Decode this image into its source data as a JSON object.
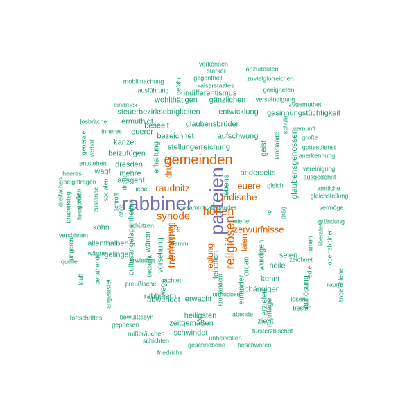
{
  "colors": {
    "green": "#1b9e77",
    "orange": "#d95f02",
    "purple": "#7570b3"
  },
  "words": [
    {
      "t": "rabbiner",
      "c": "purple",
      "r": false
    },
    {
      "t": "parteien",
      "c": "purple",
      "r": true
    },
    {
      "t": "gemeinden",
      "c": "orange",
      "r": false
    },
    {
      "t": "religiösen",
      "c": "orange",
      "r": true
    },
    {
      "t": "hohen",
      "c": "orange",
      "r": false
    },
    {
      "t": "trennung",
      "c": "orange",
      "r": true
    },
    {
      "t": "synode",
      "c": "orange",
      "r": false
    },
    {
      "t": "raudnitz",
      "c": "orange",
      "r": false
    },
    {
      "t": "jüdische",
      "c": "orange",
      "r": false
    },
    {
      "t": "euere",
      "c": "orange",
      "r": false
    },
    {
      "t": "zerwürfnisse",
      "c": "orange",
      "r": false
    },
    {
      "t": "druck",
      "c": "orange",
      "r": true
    },
    {
      "t": "laien",
      "c": "orange",
      "r": true
    },
    {
      "t": "belehrung",
      "c": "orange",
      "r": true
    },
    {
      "t": "reglung",
      "c": "orange",
      "r": true
    },
    {
      "t": "verkennen",
      "c": "green",
      "r": false
    },
    {
      "t": "stärker",
      "c": "green",
      "r": false
    },
    {
      "t": "anzudeuten",
      "c": "green",
      "r": false
    },
    {
      "t": "gegentheil",
      "c": "green",
      "r": false
    },
    {
      "t": "zuvielglorreichen",
      "c": "green",
      "r": false
    },
    {
      "t": "mobilmachung",
      "c": "green",
      "r": false
    },
    {
      "t": "kaiserstaates",
      "c": "green",
      "r": false
    },
    {
      "t": "gefahr",
      "c": "green",
      "r": true
    },
    {
      "t": "geeigneten",
      "c": "green",
      "r": false
    },
    {
      "t": "ausführung",
      "c": "green",
      "r": false
    },
    {
      "t": "indifferentismus",
      "c": "green",
      "r": false
    },
    {
      "t": "wohlthätigen",
      "c": "green",
      "r": false
    },
    {
      "t": "gänzlichen",
      "c": "green",
      "r": false
    },
    {
      "t": "verständigung",
      "c": "green",
      "r": false
    },
    {
      "t": "zugemuthet",
      "c": "green",
      "r": false
    },
    {
      "t": "eindruck",
      "c": "green",
      "r": false
    },
    {
      "t": "steuerbezirksobrigkeiten",
      "c": "green",
      "r": false
    },
    {
      "t": "entwicklung",
      "c": "green",
      "r": false
    },
    {
      "t": "gesinnungstüchtigkeit",
      "c": "green",
      "r": false
    },
    {
      "t": "losbräche",
      "c": "green",
      "r": false
    },
    {
      "t": "ermuthigt",
      "c": "green",
      "r": false
    },
    {
      "t": "beseelt",
      "c": "green",
      "r": false
    },
    {
      "t": "glaubensbrüder",
      "c": "green",
      "r": false
    },
    {
      "t": "schule",
      "c": "green",
      "r": true
    },
    {
      "t": "vernunft",
      "c": "green",
      "r": false
    },
    {
      "t": "inneres",
      "c": "green",
      "r": false
    },
    {
      "t": "euerer",
      "c": "green",
      "r": false
    },
    {
      "t": "bezeichnet",
      "c": "green",
      "r": false
    },
    {
      "t": "aufschwung",
      "c": "green",
      "r": false
    },
    {
      "t": "große",
      "c": "green",
      "r": false
    },
    {
      "t": "generale",
      "c": "green",
      "r": true
    },
    {
      "t": "verbot",
      "c": "green",
      "r": true
    },
    {
      "t": "kanzel",
      "c": "green",
      "r": false
    },
    {
      "t": "stellungerreichung",
      "c": "green",
      "r": false
    },
    {
      "t": "geist",
      "c": "green",
      "r": true
    },
    {
      "t": "kronlande",
      "c": "green",
      "r": true
    },
    {
      "t": "glaubensgenossen",
      "c": "green",
      "r": true
    },
    {
      "t": "gottesdienst",
      "c": "green",
      "r": false
    },
    {
      "t": "beizufügen",
      "c": "green",
      "r": false
    },
    {
      "t": "erhaltung",
      "c": "green",
      "r": true
    },
    {
      "t": "anerkennung",
      "c": "green",
      "r": false
    },
    {
      "t": "entstehen",
      "c": "green",
      "r": false
    },
    {
      "t": "dresden",
      "c": "green",
      "r": false
    },
    {
      "t": "mehre",
      "c": "green",
      "r": false
    },
    {
      "t": "anderseits",
      "c": "green",
      "r": false
    },
    {
      "t": "vereinigung",
      "c": "green",
      "r": false
    },
    {
      "t": "heeres",
      "c": "green",
      "r": false
    },
    {
      "t": "wagt",
      "c": "green",
      "r": false
    },
    {
      "t": "ausgedehnt",
      "c": "green",
      "r": false
    },
    {
      "t": "beigetragen",
      "c": "green",
      "r": false
    },
    {
      "t": "ausgeht",
      "c": "green",
      "r": false
    },
    {
      "t": "lebens",
      "c": "green",
      "r": true
    },
    {
      "t": "gleich",
      "c": "green",
      "r": false
    },
    {
      "t": "liebe",
      "c": "green",
      "r": false
    },
    {
      "t": "amtliche",
      "c": "green",
      "r": false
    },
    {
      "t": "dreifachen",
      "c": "green",
      "r": true
    },
    {
      "t": "bruderkrieg",
      "c": "green",
      "r": true
    },
    {
      "t": "großen",
      "c": "green",
      "r": true
    },
    {
      "t": "herrschaft",
      "c": "green",
      "r": true
    },
    {
      "t": "zustände",
      "c": "green",
      "r": true
    },
    {
      "t": "socialen",
      "c": "green",
      "r": true
    },
    {
      "t": "schroff",
      "c": "green",
      "r": true
    },
    {
      "t": "droht",
      "c": "green",
      "r": true
    },
    {
      "t": "gleichstellung",
      "c": "green",
      "r": false
    },
    {
      "t": "re",
      "c": "green",
      "r": false
    },
    {
      "t": "prag",
      "c": "green",
      "r": true
    },
    {
      "t": "vermöge",
      "c": "green",
      "r": false
    },
    {
      "t": "ehre",
      "c": "green",
      "r": true
    },
    {
      "t": "kohn",
      "c": "green",
      "r": false
    },
    {
      "t": "schützen",
      "c": "green",
      "r": false
    },
    {
      "t": "wiener",
      "c": "green",
      "r": false
    },
    {
      "t": "gründung",
      "c": "green",
      "r": false
    },
    {
      "t": "versöhnen",
      "c": "green",
      "r": false
    },
    {
      "t": "cultusangelegenheiten",
      "c": "green",
      "r": true
    },
    {
      "t": "wären",
      "c": "green",
      "r": true
    },
    {
      "t": "g",
      "c": "green",
      "r": false
    },
    {
      "t": "allenthalben",
      "c": "green",
      "r": false
    },
    {
      "t": "damm",
      "c": "green",
      "r": false
    },
    {
      "t": "namen",
      "c": "green",
      "r": true
    },
    {
      "t": "liberalen",
      "c": "green",
      "r": true
    },
    {
      "t": "oberrabbiner",
      "c": "green",
      "r": true
    },
    {
      "t": "jüngeren",
      "c": "green",
      "r": true
    },
    {
      "t": "wärme",
      "c": "green",
      "r": false
    },
    {
      "t": "gelingen",
      "c": "green",
      "r": false
    },
    {
      "t": "vorsehung",
      "c": "green",
      "r": true
    },
    {
      "t": "würdigen",
      "c": "green",
      "r": true
    },
    {
      "t": "seien",
      "c": "green",
      "r": false
    },
    {
      "t": "quelle",
      "c": "green",
      "r": false
    },
    {
      "t": "erwiedert",
      "c": "green",
      "r": false
    },
    {
      "t": "organ",
      "c": "green",
      "r": true
    },
    {
      "t": "heile",
      "c": "green",
      "r": false
    },
    {
      "t": "zeichnet",
      "c": "green",
      "r": false
    },
    {
      "t": "edle",
      "c": "green",
      "r": true
    },
    {
      "t": "berathende",
      "c": "green",
      "r": true
    },
    {
      "t": "bedacht",
      "c": "green",
      "r": true
    },
    {
      "t": "feindlich",
      "c": "green",
      "r": true
    },
    {
      "t": "kluft",
      "c": "green",
      "r": true
    },
    {
      "t": "achtet",
      "c": "green",
      "r": false
    },
    {
      "t": "kennt",
      "c": "green",
      "r": false
    },
    {
      "t": "preußische",
      "c": "green",
      "r": false
    },
    {
      "t": "wege",
      "c": "green",
      "r": true
    },
    {
      "t": "abhängigen",
      "c": "green",
      "r": false
    },
    {
      "t": "raum",
      "c": "green",
      "r": false
    },
    {
      "t": "anbefohlene",
      "c": "green",
      "r": true
    },
    {
      "t": "angetastet",
      "c": "green",
      "r": true
    },
    {
      "t": "kronländern",
      "c": "green",
      "r": true
    },
    {
      "t": "einander",
      "c": "green",
      "r": true
    },
    {
      "t": "auflösung",
      "c": "green",
      "r": true
    },
    {
      "t": "rabbinern",
      "c": "green",
      "r": false
    },
    {
      "t": "orthodoxen",
      "c": "green",
      "r": false
    },
    {
      "t": "erzielen",
      "c": "green",
      "r": true
    },
    {
      "t": "abwendet",
      "c": "green",
      "r": false
    },
    {
      "t": "erwacht",
      "c": "green",
      "r": false
    },
    {
      "t": "lösen",
      "c": "green",
      "r": false
    },
    {
      "t": "besten",
      "c": "green",
      "r": false
    },
    {
      "t": "montage",
      "c": "green",
      "r": true
    },
    {
      "t": "fortschrittes",
      "c": "green",
      "r": false
    },
    {
      "t": "bewußtseyn",
      "c": "green",
      "r": false
    },
    {
      "t": "heiligsten",
      "c": "green",
      "r": false
    },
    {
      "t": "abende",
      "c": "green",
      "r": false
    },
    {
      "t": "zieht",
      "c": "green",
      "r": false
    },
    {
      "t": "zeitgemäßen",
      "c": "green",
      "r": false
    },
    {
      "t": "gepriesen",
      "c": "green",
      "r": false
    },
    {
      "t": "fürsterzbischof",
      "c": "green",
      "r": false
    },
    {
      "t": "schwindet",
      "c": "green",
      "r": false
    },
    {
      "t": "mißbräuchen",
      "c": "green",
      "r": false
    },
    {
      "t": "unheilvollen",
      "c": "green",
      "r": false
    },
    {
      "t": "schichten",
      "c": "green",
      "r": false
    },
    {
      "t": "geschriebene",
      "c": "green",
      "r": false
    },
    {
      "t": "beschwören",
      "c": "green",
      "r": false
    },
    {
      "t": "friedrichs",
      "c": "green",
      "r": false
    },
    {
      "t": "gesammtvaterlandes",
      "c": "green",
      "r": false
    }
  ]
}
